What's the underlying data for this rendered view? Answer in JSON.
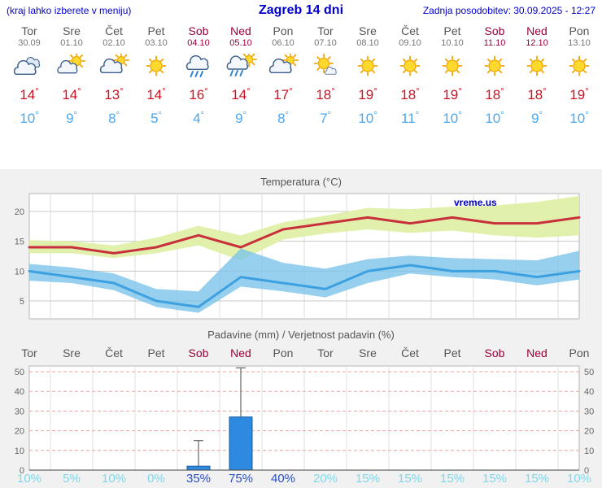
{
  "header": {
    "note": "(kraj lahko izberete v meniju)",
    "title": "Zagreb 14 dni",
    "updated": "Zadnja posodobitev: 30.09.2025 - 12:27"
  },
  "days": [
    {
      "name": "Tor",
      "date": "30.09",
      "icon": "cloudy",
      "hi": "14",
      "lo": "10",
      "weekend": false
    },
    {
      "name": "Sre",
      "date": "01.10",
      "icon": "partly-sunny",
      "hi": "14",
      "lo": "9",
      "weekend": false
    },
    {
      "name": "Čet",
      "date": "02.10",
      "icon": "mostly-cloudy",
      "hi": "13",
      "lo": "8",
      "weekend": false
    },
    {
      "name": "Pet",
      "date": "03.10",
      "icon": "sunny",
      "hi": "14",
      "lo": "5",
      "weekend": false
    },
    {
      "name": "Sob",
      "date": "04.10",
      "icon": "rain",
      "hi": "16",
      "lo": "4",
      "weekend": true
    },
    {
      "name": "Ned",
      "date": "05.10",
      "icon": "sun-rain",
      "hi": "14",
      "lo": "9",
      "weekend": true
    },
    {
      "name": "Pon",
      "date": "06.10",
      "icon": "mostly-cloudy",
      "hi": "17",
      "lo": "8",
      "weekend": false
    },
    {
      "name": "Tor",
      "date": "07.10",
      "icon": "mostly-sunny",
      "hi": "18",
      "lo": "7",
      "weekend": false
    },
    {
      "name": "Sre",
      "date": "08.10",
      "icon": "sunny",
      "hi": "19",
      "lo": "10",
      "weekend": false
    },
    {
      "name": "Čet",
      "date": "09.10",
      "icon": "sunny",
      "hi": "18",
      "lo": "11",
      "weekend": false
    },
    {
      "name": "Pet",
      "date": "10.10",
      "icon": "sunny",
      "hi": "19",
      "lo": "10",
      "weekend": false
    },
    {
      "name": "Sob",
      "date": "11.10",
      "icon": "sunny",
      "hi": "18",
      "lo": "10",
      "weekend": true
    },
    {
      "name": "Ned",
      "date": "12.10",
      "icon": "sunny",
      "hi": "18",
      "lo": "9",
      "weekend": true
    },
    {
      "name": "Pon",
      "date": "13.10",
      "icon": "sunny",
      "hi": "19",
      "lo": "10",
      "weekend": false
    }
  ],
  "chart_data": [
    {
      "type": "line",
      "title": "Temperatura (°C)",
      "watermark": "vreme.us",
      "categories": [
        "Tor 30.09",
        "Sre 01.10",
        "Čet 02.10",
        "Pet 03.10",
        "Sob 04.10",
        "Ned 05.10",
        "Pon 06.10",
        "Tor 07.10",
        "Sre 08.10",
        "Čet 09.10",
        "Pet 10.10",
        "Sob 11.10",
        "Ned 12.10",
        "Pon 13.10"
      ],
      "yticks": [
        5,
        10,
        15,
        20
      ],
      "ylim": [
        2,
        23
      ],
      "grid": true,
      "series": [
        {
          "name": "max-temperature",
          "color": "#c8303c",
          "values": [
            14,
            14,
            13,
            14,
            16,
            14,
            17,
            18,
            19,
            18,
            19,
            18,
            18,
            19
          ]
        },
        {
          "name": "min-temperature",
          "color": "#3da0e0",
          "values": [
            10,
            9,
            8,
            5,
            4,
            9,
            8,
            7,
            10,
            11,
            10,
            10,
            9,
            10
          ]
        }
      ],
      "bands": [
        {
          "name": "max-range",
          "color": "#dff0a6",
          "opacity": 0.95,
          "top": [
            15.2,
            15.0,
            14.3,
            15.6,
            17.6,
            16.0,
            18.2,
            19.3,
            20.6,
            20.4,
            20.8,
            21.0,
            21.6,
            22.6
          ],
          "bottom": [
            13.0,
            13.0,
            12.2,
            13.0,
            14.3,
            11.8,
            15.3,
            16.3,
            17.0,
            16.4,
            16.8,
            16.0,
            15.6,
            16.0
          ]
        },
        {
          "name": "min-range",
          "color": "#7cc4ea",
          "opacity": 0.8,
          "top": [
            11.2,
            10.6,
            9.6,
            7.0,
            6.6,
            13.8,
            11.4,
            10.4,
            12.0,
            12.6,
            12.2,
            12.0,
            11.8,
            13.4
          ],
          "bottom": [
            8.4,
            8.0,
            6.8,
            4.0,
            3.0,
            7.4,
            6.6,
            5.6,
            8.0,
            9.6,
            9.0,
            8.6,
            7.6,
            8.6
          ]
        }
      ]
    },
    {
      "type": "bar",
      "title": "Padavine (mm) / Verjetnost padavin (%)",
      "categories": [
        "Tor",
        "Sre",
        "Čet",
        "Pet",
        "Sob",
        "Ned",
        "Pon",
        "Tor",
        "Sre",
        "Čet",
        "Pet",
        "Sob",
        "Ned",
        "Pon"
      ],
      "yticks": [
        0,
        10,
        20,
        30,
        40,
        50
      ],
      "ylim": [
        0,
        53
      ],
      "values": [
        0,
        0,
        0,
        0,
        2,
        27,
        0,
        0,
        0,
        0,
        0,
        0,
        0,
        0
      ],
      "whisker_max": [
        0,
        0,
        0,
        0,
        15,
        52,
        0,
        0,
        0,
        0,
        0,
        0,
        0,
        0
      ],
      "probabilities": [
        "10%",
        "5%",
        "10%",
        "0%",
        "35%",
        "75%",
        "40%",
        "20%",
        "15%",
        "15%",
        "15%",
        "15%",
        "15%",
        "10%"
      ],
      "prob_strong": [
        false,
        false,
        false,
        false,
        true,
        true,
        true,
        false,
        false,
        false,
        false,
        false,
        false,
        false
      ]
    }
  ],
  "colors": {
    "accent_blue": "#0000cc",
    "weekend": "#99003d",
    "weekday": "#555555",
    "date_gray": "#777777",
    "hi_temp": "#cc1122",
    "lo_temp": "#4aa7f0",
    "bar_fill": "#2d8ae0",
    "bar_stroke": "#1a5c9e",
    "prob_normal": "#7fd8ea",
    "prob_strong": "#2b4fc0"
  }
}
